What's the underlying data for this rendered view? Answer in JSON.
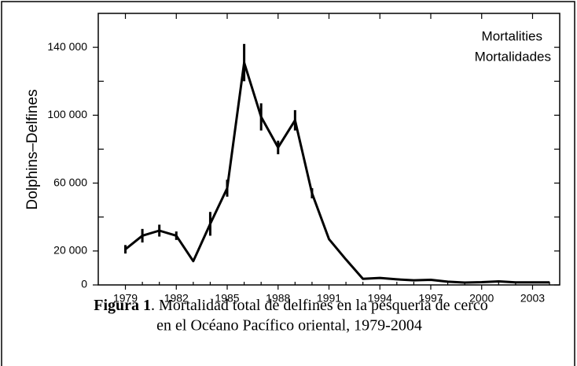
{
  "chart_data": {
    "type": "line",
    "y_label": "Dolphins–Delfines",
    "annotation": [
      "Mortalities",
      "Mortalidades"
    ],
    "caption": {
      "label": "Figura 1",
      "lines": [
        ". Mortalidad total de delfines en la pesquería de cerco",
        "en el Océano Pacífico oriental, 1979-2004"
      ]
    },
    "x": [
      1979,
      1980,
      1981,
      1982,
      1983,
      1984,
      1985,
      1986,
      1987,
      1988,
      1989,
      1990,
      1991,
      1992,
      1993,
      1994,
      1995,
      1996,
      1997,
      1998,
      1999,
      2000,
      2001,
      2002,
      2003,
      2004
    ],
    "series": [
      {
        "name": "Mortalities",
        "color": "#000000",
        "values": [
          21000,
          29000,
          32000,
          29000,
          14000,
          36000,
          57000,
          131000,
          99000,
          81000,
          97000,
          54000,
          27000,
          15000,
          3600,
          4100,
          3300,
          2700,
          3000,
          1900,
          1400,
          1600,
          2100,
          1500,
          1500,
          1500
        ],
        "errors": [
          2500,
          4000,
          3500,
          2500,
          null,
          7000,
          5000,
          11000,
          8000,
          4000,
          6000,
          3000,
          null,
          null,
          null,
          null,
          null,
          null,
          null,
          null,
          null,
          null,
          null,
          null,
          null,
          null
        ]
      }
    ],
    "xlim": [
      1977.4,
      2004.6
    ],
    "xticks": [
      1979,
      1982,
      1985,
      1988,
      1991,
      1994,
      1997,
      2000,
      2003
    ],
    "xticks_minor": [
      1980,
      1981,
      1983,
      1984,
      1986,
      1987,
      1989,
      1990,
      1992,
      1993,
      1995,
      1996,
      1998,
      1999,
      2001,
      2002,
      2004
    ],
    "ylim": [
      0,
      160000
    ],
    "yticks": [
      0,
      {
        "value": 20000,
        "label": "20 000"
      },
      {
        "value": 60000,
        "label": "60 000"
      },
      {
        "value": 100000,
        "label": "100 000"
      },
      {
        "value": 140000,
        "label": "140 000"
      }
    ],
    "yticks_minor": [
      40000,
      80000,
      120000
    ]
  }
}
